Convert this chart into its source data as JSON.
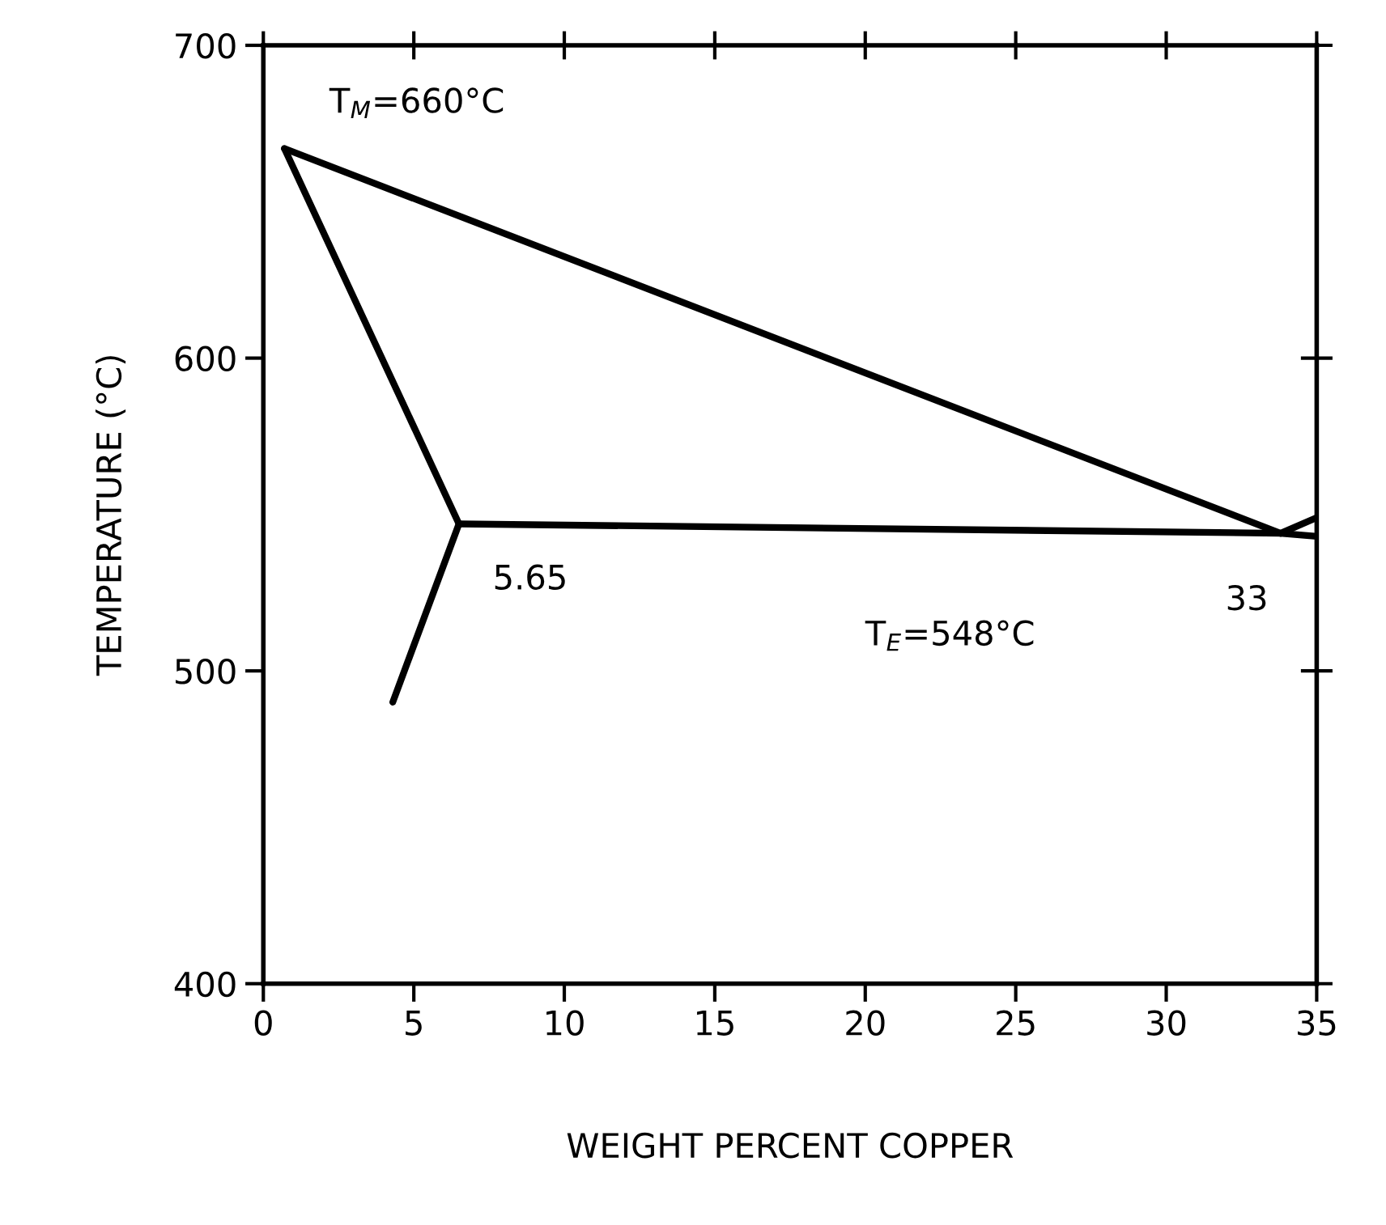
{
  "chart_data": {
    "type": "line",
    "xlabel": "WEIGHT PERCENT COPPER",
    "ylabel": "TEMPERATURE (°C)",
    "xlim": [
      0,
      35
    ],
    "ylim": [
      400,
      700
    ],
    "xticks": [
      0,
      5,
      10,
      15,
      20,
      25,
      30,
      35
    ],
    "yticks": [
      400,
      500,
      600,
      700
    ],
    "grid": false,
    "legend": false,
    "marker": "none",
    "line_style": "solid",
    "series": [
      {
        "color": "#000000",
        "x": [
          0.7,
          33.8
        ],
        "values": [
          667,
          544
        ]
      },
      {
        "color": "#000000",
        "x": [
          0.7,
          6.5
        ],
        "values": [
          667,
          547
        ]
      },
      {
        "color": "#000000",
        "x": [
          6.5,
          4.3
        ],
        "values": [
          547,
          490
        ]
      },
      {
        "color": "#000000",
        "x": [
          6.5,
          33.8,
          35
        ],
        "values": [
          547,
          544,
          543
        ]
      },
      {
        "color": "#000000",
        "x": [
          33.8,
          35
        ],
        "values": [
          544,
          549
        ]
      }
    ],
    "annotations": [
      {
        "text": "T$_{M}$=660°C",
        "x": 0.7,
        "y": 667
      },
      {
        "text": "5.65",
        "x": 6.5,
        "y": 547
      },
      {
        "text": "T$_{E}$=548°C",
        "x": 20,
        "y": 547
      },
      {
        "text": "33",
        "x": 33.8,
        "y": 544
      }
    ]
  }
}
